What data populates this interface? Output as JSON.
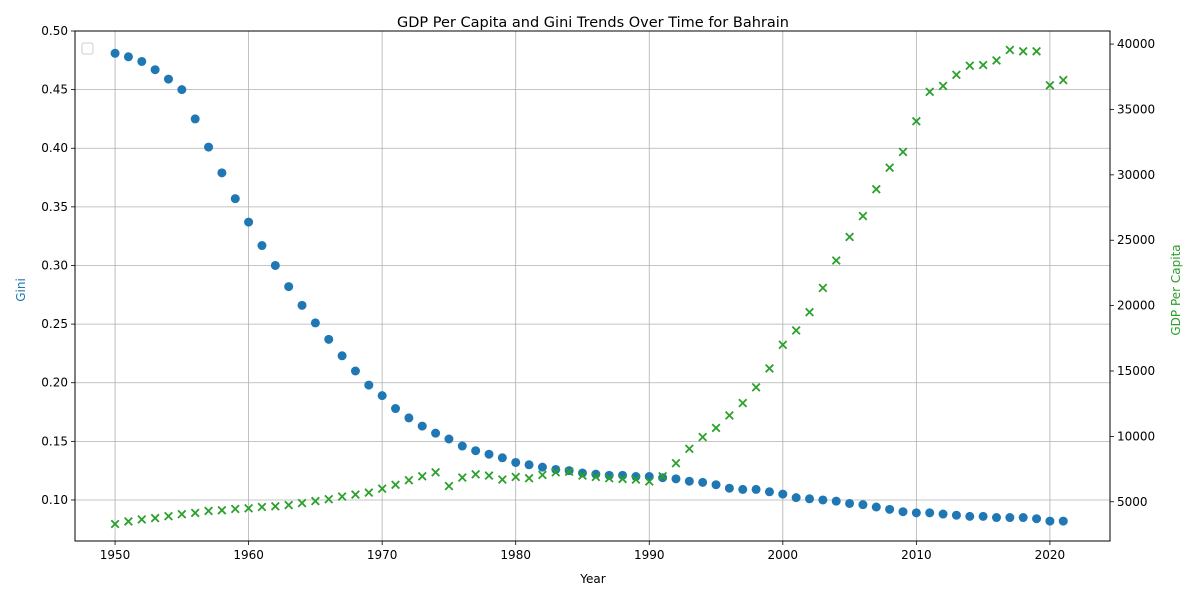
{
  "chart_data": {
    "type": "scatter",
    "title": "GDP Per Capita and Gini Trends Over Time for Bahrain",
    "xlabel": "Year",
    "ylabel_left": "Gini",
    "ylabel_right": "GDP Per Capita",
    "xlim": [
      1947,
      2024.5
    ],
    "ylim_left": [
      0.065,
      0.5
    ],
    "ylim_right": [
      2000,
      41000
    ],
    "x_ticks": [
      1950,
      1960,
      1970,
      1980,
      1990,
      2000,
      2010,
      2020
    ],
    "y_left_ticks": [
      0.1,
      0.15,
      0.2,
      0.25,
      0.3,
      0.35,
      0.4,
      0.45,
      0.5
    ],
    "y_right_ticks": [
      5000,
      10000,
      15000,
      20000,
      25000,
      30000,
      35000,
      40000
    ],
    "grid": true,
    "legend": "upper-left (empty)",
    "colors": {
      "gini": "#1f77b4",
      "gdp": "#2ca02c"
    },
    "years": [
      1950,
      1951,
      1952,
      1953,
      1954,
      1955,
      1956,
      1957,
      1958,
      1959,
      1960,
      1961,
      1962,
      1963,
      1964,
      1965,
      1966,
      1967,
      1968,
      1969,
      1970,
      1971,
      1972,
      1973,
      1974,
      1975,
      1976,
      1977,
      1978,
      1979,
      1980,
      1981,
      1982,
      1983,
      1984,
      1985,
      1986,
      1987,
      1988,
      1989,
      1990,
      1991,
      1992,
      1993,
      1994,
      1995,
      1996,
      1997,
      1998,
      1999,
      2000,
      2001,
      2002,
      2003,
      2004,
      2005,
      2006,
      2007,
      2008,
      2009,
      2010,
      2011,
      2012,
      2013,
      2014,
      2015,
      2016,
      2017,
      2018,
      2019,
      2020,
      2021
    ],
    "series": [
      {
        "axis": "left",
        "marker": "circle",
        "values": [
          0.481,
          0.478,
          0.474,
          0.467,
          0.459,
          0.45,
          0.425,
          0.401,
          0.379,
          0.357,
          0.337,
          0.317,
          0.3,
          0.282,
          0.266,
          0.251,
          0.237,
          0.223,
          0.21,
          0.198,
          0.189,
          0.178,
          0.17,
          0.163,
          0.157,
          0.152,
          0.146,
          0.142,
          0.139,
          0.136,
          0.132,
          0.13,
          0.128,
          0.126,
          0.125,
          0.123,
          0.122,
          0.121,
          0.121,
          0.12,
          0.12,
          0.119,
          0.118,
          0.116,
          0.115,
          0.113,
          0.11,
          0.109,
          0.109,
          0.107,
          0.105,
          0.102,
          0.101,
          0.1,
          0.099,
          0.097,
          0.096,
          0.094,
          0.092,
          0.09,
          0.089,
          0.089,
          0.088,
          0.087,
          0.086,
          0.086,
          0.085,
          0.085,
          0.085,
          0.084,
          0.082,
          0.082
        ]
      },
      {
        "axis": "right",
        "marker": "x",
        "values": [
          3300,
          3500,
          3650,
          3750,
          3900,
          4050,
          4150,
          4300,
          4350,
          4450,
          4500,
          4600,
          4650,
          4750,
          4900,
          5050,
          5200,
          5400,
          5550,
          5700,
          6000,
          6300,
          6650,
          6950,
          7250,
          6200,
          6850,
          7100,
          7000,
          6700,
          6900,
          6800,
          7050,
          7250,
          7300,
          7000,
          6900,
          6800,
          6750,
          6700,
          6550,
          6950,
          7950,
          9050,
          9950,
          10650,
          11600,
          12550,
          13750,
          15200,
          17000,
          18100,
          19500,
          21350,
          23450,
          25250,
          26850,
          28900,
          30550,
          31750,
          34100,
          36350,
          36800,
          37650,
          38350,
          38400,
          38750,
          39550,
          39450,
          39450,
          36850,
          37250
        ]
      }
    ]
  }
}
